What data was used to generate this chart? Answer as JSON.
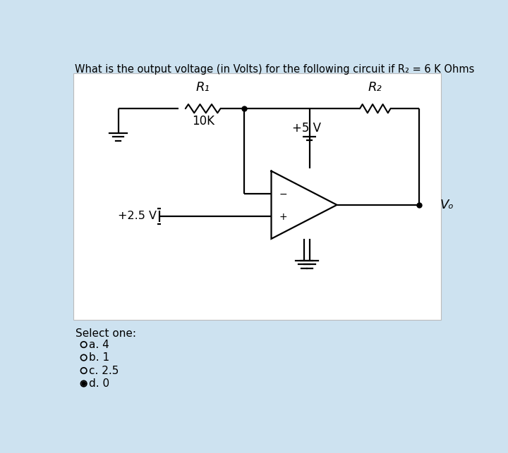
{
  "title": "What is the output voltage (in Volts) for the following circuit if R₂ = 6 K Ohms",
  "bg_outer": "#cde2f0",
  "bg_inner": "#ffffff",
  "select_one": "Select one:",
  "options": [
    "a. 4",
    "b. 1",
    "c. 2.5",
    "d. 0"
  ],
  "selected_option": 3,
  "R1_label": "R₁",
  "R1_value": "10K",
  "R2_label": "R₂",
  "Vplus_label": "+5 V",
  "V25_label": "+2.5 V",
  "Vo_label": "Vₒ",
  "neg_label": "−",
  "pos_label": "+"
}
